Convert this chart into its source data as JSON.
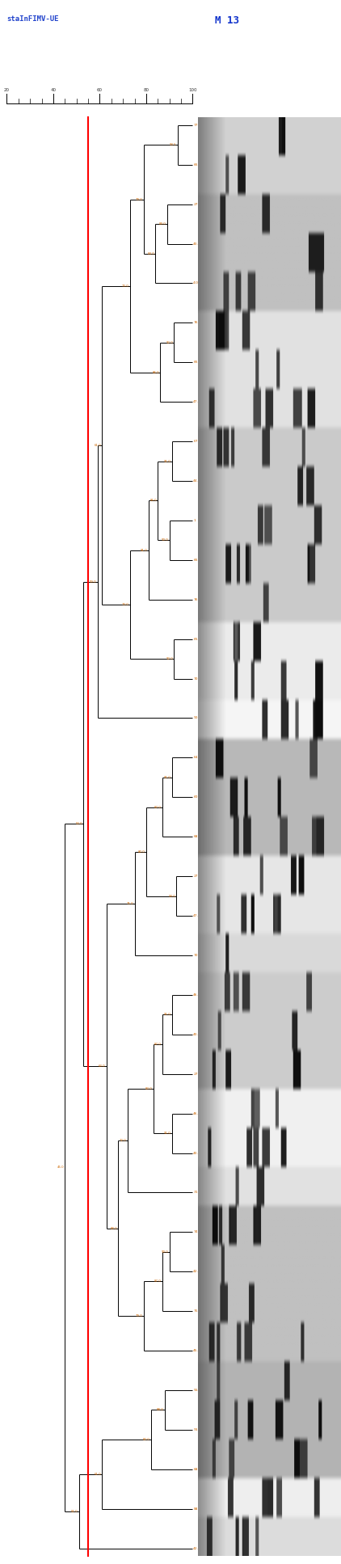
{
  "title_left": "staInFIMV-UE",
  "title_right": "M 13",
  "scale_ticks": [
    20,
    40,
    60,
    80,
    100
  ],
  "red_line_similarity": 55,
  "fig_width": 4.22,
  "fig_height": 19.35,
  "dpi": 100,
  "background": "#ffffff",
  "line_color": "#000000",
  "red_line_color": "#ff0000",
  "label_color_orange": "#cc6600",
  "label_color_blue": "#003399",
  "title_left_color": "#2244cc",
  "title_right_color": "#1133cc",
  "scale_min": 20,
  "scale_max": 100,
  "labels_top_to_bottom": [
    "77.6",
    "66.2",
    "27.3",
    "40.3",
    "4.0",
    "76.1",
    "66.8",
    "47.2",
    "67.1",
    "44.7",
    "1",
    "66.4",
    "76.3",
    "65.2",
    "70.0",
    "90.2",
    "64.0",
    "60.9",
    "68.4",
    "27",
    "47.8",
    "70.2",
    "46.2",
    "40.3",
    "27.2",
    "46.2",
    "40.3",
    "31.1",
    "74.3",
    "42.2",
    "75.6",
    "45.1",
    "55.3",
    "91",
    "68",
    "88.2",
    "42.0"
  ],
  "gel_row_groups": [
    "A",
    "A",
    "B",
    "B",
    "B",
    "C",
    "C",
    "C",
    "D",
    "D",
    "D",
    "D",
    "D",
    "E",
    "E",
    "F",
    "G",
    "G",
    "G",
    "H",
    "H",
    "I",
    "J",
    "J",
    "J",
    "K",
    "K",
    "L",
    "M",
    "M",
    "M",
    "M",
    "N",
    "N",
    "N",
    "O",
    "P"
  ],
  "merges": [
    {
      "leaves": [
        0,
        1
      ],
      "sim": 93.5
    },
    {
      "leaves": [
        2,
        3
      ],
      "sim": 89.0
    },
    {
      "leaves": [
        2,
        3,
        4
      ],
      "sim": 84.0
    },
    {
      "leaves": [
        0,
        1,
        2,
        3,
        4
      ],
      "sim": 79.0
    },
    {
      "leaves": [
        5,
        6
      ],
      "sim": 92.0
    },
    {
      "leaves": [
        5,
        6,
        7
      ],
      "sim": 86.0
    },
    {
      "leaves": [
        0,
        1,
        2,
        3,
        4,
        5,
        6,
        7
      ],
      "sim": 73.0
    },
    {
      "leaves": [
        8,
        9
      ],
      "sim": 91.0
    },
    {
      "leaves": [
        10,
        11
      ],
      "sim": 90.0
    },
    {
      "leaves": [
        8,
        9,
        10,
        11
      ],
      "sim": 85.0
    },
    {
      "leaves": [
        8,
        9,
        10,
        11,
        12
      ],
      "sim": 81.0
    },
    {
      "leaves": [
        13,
        14
      ],
      "sim": 92.0
    },
    {
      "leaves": [
        8,
        9,
        10,
        11,
        12,
        13,
        14
      ],
      "sim": 73.0
    },
    {
      "leaves": [
        0,
        1,
        2,
        3,
        4,
        5,
        6,
        7,
        8,
        9,
        10,
        11,
        12,
        13,
        14
      ],
      "sim": 61.0
    },
    {
      "leaves": [
        15,
        0,
        1,
        2,
        3,
        4,
        5,
        6,
        7,
        8,
        9,
        10,
        11,
        12,
        13,
        14
      ],
      "sim": 59.0
    },
    {
      "leaves": [
        16,
        17
      ],
      "sim": 91.0
    },
    {
      "leaves": [
        16,
        17,
        18
      ],
      "sim": 87.0
    },
    {
      "leaves": [
        19,
        20
      ],
      "sim": 93.0
    },
    {
      "leaves": [
        16,
        17,
        18,
        19,
        20
      ],
      "sim": 80.0
    },
    {
      "leaves": [
        16,
        17,
        18,
        19,
        20,
        21
      ],
      "sim": 75.0
    },
    {
      "leaves": [
        22,
        23
      ],
      "sim": 91.0
    },
    {
      "leaves": [
        22,
        23,
        24
      ],
      "sim": 87.0
    },
    {
      "leaves": [
        25,
        26
      ],
      "sim": 91.0
    },
    {
      "leaves": [
        22,
        23,
        24,
        25,
        26
      ],
      "sim": 83.0
    },
    {
      "leaves": [
        22,
        23,
        24,
        25,
        26,
        27
      ],
      "sim": 72.0
    },
    {
      "leaves": [
        28,
        29
      ],
      "sim": 90.0
    },
    {
      "leaves": [
        28,
        29,
        30
      ],
      "sim": 87.0
    },
    {
      "leaves": [
        28,
        29,
        30,
        31
      ],
      "sim": 79.0
    },
    {
      "leaves": [
        22,
        23,
        24,
        25,
        26,
        27,
        28,
        29,
        30,
        31
      ],
      "sim": 68.0
    },
    {
      "leaves": [
        16,
        17,
        18,
        19,
        20,
        21,
        22,
        23,
        24,
        25,
        26,
        27,
        28,
        29,
        30,
        31
      ],
      "sim": 63.0
    },
    {
      "leaves": [
        32,
        33
      ],
      "sim": 88.0
    },
    {
      "leaves": [
        32,
        33,
        34
      ],
      "sim": 82.0
    },
    {
      "leaves": [
        32,
        33,
        34,
        35
      ],
      "sim": 61.0
    },
    {
      "leaves": [
        36,
        32,
        33,
        34,
        35
      ],
      "sim": 51.0
    },
    {
      "leaves": [
        15,
        0,
        1,
        2,
        3,
        4,
        5,
        6,
        7,
        8,
        9,
        10,
        11,
        12,
        13,
        14,
        16,
        17,
        18,
        19,
        20,
        21,
        22,
        23,
        24,
        25,
        26,
        27,
        28,
        29,
        30,
        31
      ],
      "sim": 53.0
    },
    {
      "leaves": [
        15,
        0,
        1,
        2,
        3,
        4,
        5,
        6,
        7,
        8,
        9,
        10,
        11,
        12,
        13,
        14,
        16,
        17,
        18,
        19,
        20,
        21,
        22,
        23,
        24,
        25,
        26,
        27,
        28,
        29,
        30,
        31,
        36,
        32,
        33,
        34,
        35
      ],
      "sim": 45.0
    }
  ]
}
